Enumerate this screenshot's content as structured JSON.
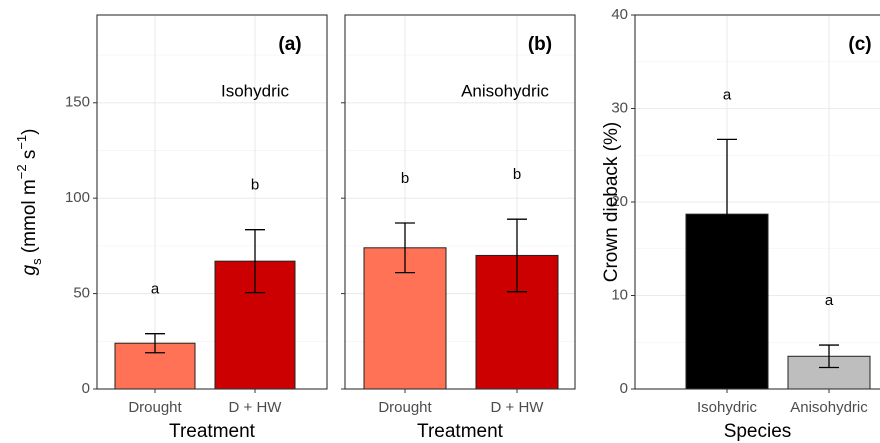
{
  "chart_data": [
    {
      "type": "bar",
      "panel_label": "(a)",
      "annotation": "Isohydric",
      "y_label": [
        "g",
        "s",
        " (mmol m",
        "−2",
        " s",
        "−1",
        ")"
      ],
      "x_label": "Treatment",
      "categories": [
        "Drought",
        "D + HW"
      ],
      "values": [
        24,
        67
      ],
      "errors": [
        5,
        16.5
      ],
      "colors": [
        "#ff7256",
        "#cc0000"
      ],
      "letters": [
        "a",
        "b"
      ],
      "ylim": [
        0,
        196
      ],
      "yticks": [
        0,
        50,
        100,
        150
      ],
      "grid": true
    },
    {
      "type": "bar",
      "panel_label": "(b)",
      "annotation": "Anisohydric",
      "x_label": "Treatment",
      "categories": [
        "Drought",
        "D + HW"
      ],
      "values": [
        74,
        70
      ],
      "errors": [
        13,
        19
      ],
      "colors": [
        "#ff7256",
        "#cc0000"
      ],
      "letters": [
        "b",
        "b"
      ],
      "ylim": [
        0,
        196
      ],
      "grid": true
    },
    {
      "type": "bar",
      "panel_label": "(c)",
      "y_label": [
        "Crown dieback (%)"
      ],
      "x_label": "Species",
      "categories": [
        "Isohydric",
        "Anisohydric"
      ],
      "values": [
        18.7,
        3.5
      ],
      "errors": [
        8,
        1.2
      ],
      "colors": [
        "#000000",
        "#bebebe"
      ],
      "letters": [
        "a",
        "a"
      ],
      "ylim": [
        0,
        40
      ],
      "yticks": [
        0,
        10,
        20,
        30,
        40
      ],
      "grid": true
    }
  ]
}
